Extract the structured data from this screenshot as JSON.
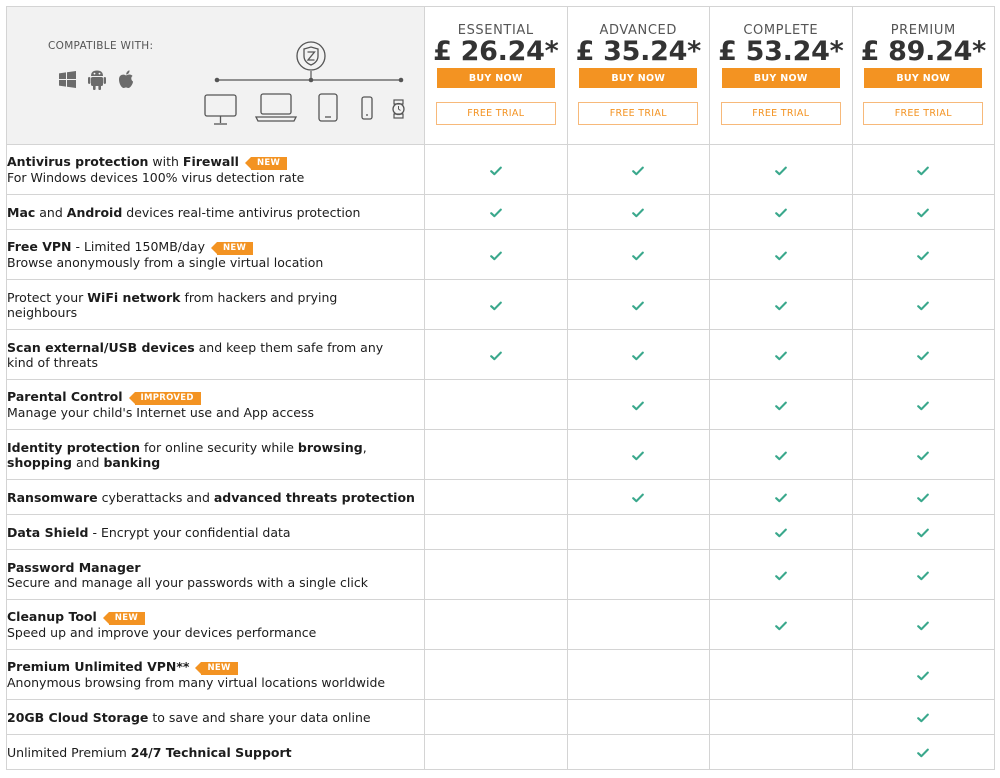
{
  "compatible_with": "COMPATIBLE WITH:",
  "os_icons": [
    "windows-icon",
    "android-icon",
    "apple-icon"
  ],
  "device_icons": [
    "shield-logo-icon",
    "desktop-icon",
    "laptop-icon",
    "tablet-icon",
    "phone-icon",
    "smartwatch-icon"
  ],
  "colors": {
    "accent": "#f39322",
    "check": "#3aa88c",
    "header_bg": "#f2f2f2",
    "border": "#d4d4d4"
  },
  "plans": [
    {
      "name": "ESSENTIAL",
      "price": "£ 26.24*",
      "buy": "BUY NOW",
      "trial": "FREE TRIAL"
    },
    {
      "name": "ADVANCED",
      "price": "£ 35.24*",
      "buy": "BUY NOW",
      "trial": "FREE TRIAL"
    },
    {
      "name": "COMPLETE",
      "price": "£ 53.24*",
      "buy": "BUY NOW",
      "trial": "FREE TRIAL"
    },
    {
      "name": "PREMIUM",
      "price": "£ 89.24*",
      "buy": "BUY NOW",
      "trial": "FREE TRIAL"
    }
  ],
  "features": [
    {
      "line1": [
        {
          "t": "Antivirus protection",
          "b": true
        },
        {
          "t": " with ",
          "b": false
        },
        {
          "t": "Firewall",
          "b": true
        }
      ],
      "badge": "NEW",
      "line2": [
        {
          "t": "For Windows devices 100% virus detection rate",
          "b": false
        }
      ],
      "checks": [
        true,
        true,
        true,
        true
      ]
    },
    {
      "line1": [
        {
          "t": "Mac",
          "b": true
        },
        {
          "t": " and ",
          "b": false
        },
        {
          "t": "Android",
          "b": true
        },
        {
          "t": " devices real-time antivirus protection",
          "b": false
        }
      ],
      "checks": [
        true,
        true,
        true,
        true
      ]
    },
    {
      "line1": [
        {
          "t": "Free VPN",
          "b": true
        },
        {
          "t": " - Limited 150MB/day",
          "b": false
        }
      ],
      "badge": "NEW",
      "line2": [
        {
          "t": "Browse anonymously from a single virtual location",
          "b": false
        }
      ],
      "checks": [
        true,
        true,
        true,
        true
      ]
    },
    {
      "line1": [
        {
          "t": "Protect your ",
          "b": false
        },
        {
          "t": "WiFi network",
          "b": true
        },
        {
          "t": " from hackers and prying",
          "b": false
        }
      ],
      "line2": [
        {
          "t": "neighbours",
          "b": false
        }
      ],
      "checks": [
        true,
        true,
        true,
        true
      ]
    },
    {
      "line1": [
        {
          "t": "Scan external/USB devices",
          "b": true
        },
        {
          "t": " and keep them safe from any",
          "b": false
        }
      ],
      "line2": [
        {
          "t": "kind of threats",
          "b": false
        }
      ],
      "checks": [
        true,
        true,
        true,
        true
      ]
    },
    {
      "line1": [
        {
          "t": "Parental Control",
          "b": true
        }
      ],
      "badge": "IMPROVED",
      "line2": [
        {
          "t": "Manage your child's Internet use and App access",
          "b": false
        }
      ],
      "checks": [
        false,
        true,
        true,
        true
      ]
    },
    {
      "line1": [
        {
          "t": "Identity protection",
          "b": true
        },
        {
          "t": " for online security while ",
          "b": false
        },
        {
          "t": "browsing",
          "b": true
        },
        {
          "t": ",",
          "b": false
        }
      ],
      "line2": [
        {
          "t": "shopping",
          "b": true
        },
        {
          "t": " and ",
          "b": false
        },
        {
          "t": "banking",
          "b": true
        }
      ],
      "checks": [
        false,
        true,
        true,
        true
      ]
    },
    {
      "line1": [
        {
          "t": "Ransomware",
          "b": true
        },
        {
          "t": " cyberattacks and ",
          "b": false
        },
        {
          "t": "advanced threats protection",
          "b": true
        }
      ],
      "checks": [
        false,
        true,
        true,
        true
      ]
    },
    {
      "line1": [
        {
          "t": "Data Shield",
          "b": true
        },
        {
          "t": " - Encrypt your confidential data",
          "b": false
        }
      ],
      "checks": [
        false,
        false,
        true,
        true
      ]
    },
    {
      "line1": [
        {
          "t": "Password Manager",
          "b": true
        }
      ],
      "line2": [
        {
          "t": "Secure and manage all your passwords with a single click",
          "b": false
        }
      ],
      "checks": [
        false,
        false,
        true,
        true
      ]
    },
    {
      "line1": [
        {
          "t": "Cleanup Tool",
          "b": true
        }
      ],
      "badge": "NEW",
      "line2": [
        {
          "t": "Speed up and improve your devices performance",
          "b": false
        }
      ],
      "checks": [
        false,
        false,
        true,
        true
      ]
    },
    {
      "line1": [
        {
          "t": "Premium Unlimited VPN**",
          "b": true
        }
      ],
      "badge": "NEW",
      "line2": [
        {
          "t": "Anonymous browsing from many virtual locations worldwide",
          "b": false
        }
      ],
      "checks": [
        false,
        false,
        false,
        true
      ]
    },
    {
      "line1": [
        {
          "t": "20GB Cloud Storage",
          "b": true
        },
        {
          "t": " to save and share your data online",
          "b": false
        }
      ],
      "checks": [
        false,
        false,
        false,
        true
      ]
    },
    {
      "line1": [
        {
          "t": "Unlimited Premium ",
          "b": false
        },
        {
          "t": "24/7 Technical Support",
          "b": true
        }
      ],
      "checks": [
        false,
        false,
        false,
        true
      ]
    }
  ]
}
